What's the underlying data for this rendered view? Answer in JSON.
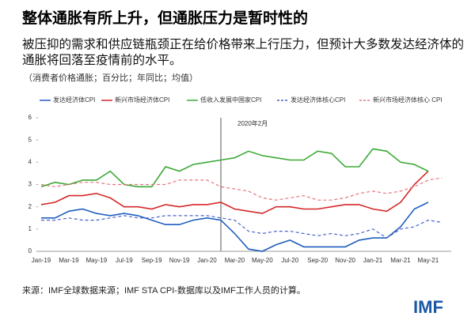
{
  "header": {
    "title": "整体通胀有所上升，但通胀压力是暂时性的",
    "subtitle": "被压抑的需求和供应链瓶颈正在给价格带来上行压力，但预计大多数发达经济体的通胀将回落至疫情前的水平。",
    "note": "（消费者价格通胀；百分比；年同比；均值）"
  },
  "chart_data": {
    "type": "line",
    "categories": [
      "Jan-19",
      null,
      "Mar-19",
      null,
      "May-19",
      null,
      "Jul-19",
      null,
      "Sep-19",
      null,
      "Nov-19",
      null,
      "Jan-20",
      null,
      "Mar-20",
      null,
      "May-20",
      null,
      "Jul-20",
      null,
      "Sep-20",
      null,
      "Nov-20",
      null,
      "Jan-21",
      null,
      "Mar-21",
      null,
      "May-21",
      null
    ],
    "series": [
      {
        "name": "发达经济体CPI",
        "color": "#1f5fbf",
        "dash": false,
        "values": [
          1.5,
          1.5,
          1.8,
          1.9,
          1.7,
          1.6,
          1.7,
          1.6,
          1.4,
          1.2,
          1.2,
          1.4,
          1.5,
          1.4,
          0.8,
          0.1,
          0.0,
          0.3,
          0.5,
          0.2,
          0.2,
          0.2,
          0.2,
          0.5,
          0.6,
          0.6,
          1.1,
          1.9,
          2.2,
          null
        ]
      },
      {
        "name": "新兴市场经济体CPI",
        "color": "#d62728",
        "dash": false,
        "values": [
          2.1,
          2.2,
          2.5,
          2.5,
          2.6,
          2.4,
          2.0,
          2.0,
          1.9,
          2.1,
          2.0,
          2.1,
          2.1,
          2.2,
          1.9,
          1.8,
          1.7,
          2.0,
          2.0,
          1.9,
          1.9,
          2.0,
          2.1,
          2.1,
          1.9,
          1.8,
          2.2,
          3.0,
          3.6,
          null
        ]
      },
      {
        "name": "低收入发展中国家CPI",
        "color": "#3aaa35",
        "dash": false,
        "values": [
          2.9,
          3.1,
          3.0,
          3.2,
          3.2,
          3.6,
          3.0,
          2.9,
          2.9,
          3.8,
          3.6,
          3.9,
          4.0,
          4.1,
          4.2,
          4.5,
          4.3,
          4.2,
          4.1,
          4.1,
          4.5,
          4.4,
          3.8,
          3.8,
          4.6,
          4.5,
          4.0,
          3.9,
          3.6,
          null
        ]
      },
      {
        "name": "发达经济体核心CPI",
        "color": "#4a63c9",
        "dash": true,
        "values": [
          1.4,
          1.4,
          1.5,
          1.4,
          1.4,
          1.5,
          1.6,
          1.5,
          1.5,
          1.6,
          1.6,
          1.6,
          1.6,
          1.5,
          1.4,
          0.9,
          0.8,
          0.9,
          0.9,
          0.8,
          0.7,
          0.8,
          0.7,
          0.8,
          1.0,
          0.6,
          1.0,
          1.1,
          1.4,
          1.3
        ]
      },
      {
        "name": "新兴市场经济体核心 CPI",
        "color": "#e8737c",
        "dash": true,
        "values": [
          3.0,
          2.9,
          3.0,
          3.1,
          3.1,
          3.0,
          3.0,
          3.0,
          3.0,
          3.0,
          3.2,
          3.2,
          3.2,
          2.9,
          2.8,
          2.7,
          2.4,
          2.3,
          2.4,
          2.5,
          2.3,
          2.3,
          2.4,
          2.6,
          2.7,
          2.6,
          2.7,
          2.9,
          3.2,
          3.3
        ]
      }
    ],
    "ylim": [
      0,
      6
    ],
    "yticks": [
      0,
      1,
      2,
      3,
      4,
      5,
      6
    ],
    "annotation": "2020年2月"
  },
  "footer": {
    "source": "来源：IMF全球数据来源；IMF STA CPI-数据库以及IMF工作人员的计算。",
    "logo": "IMF"
  }
}
